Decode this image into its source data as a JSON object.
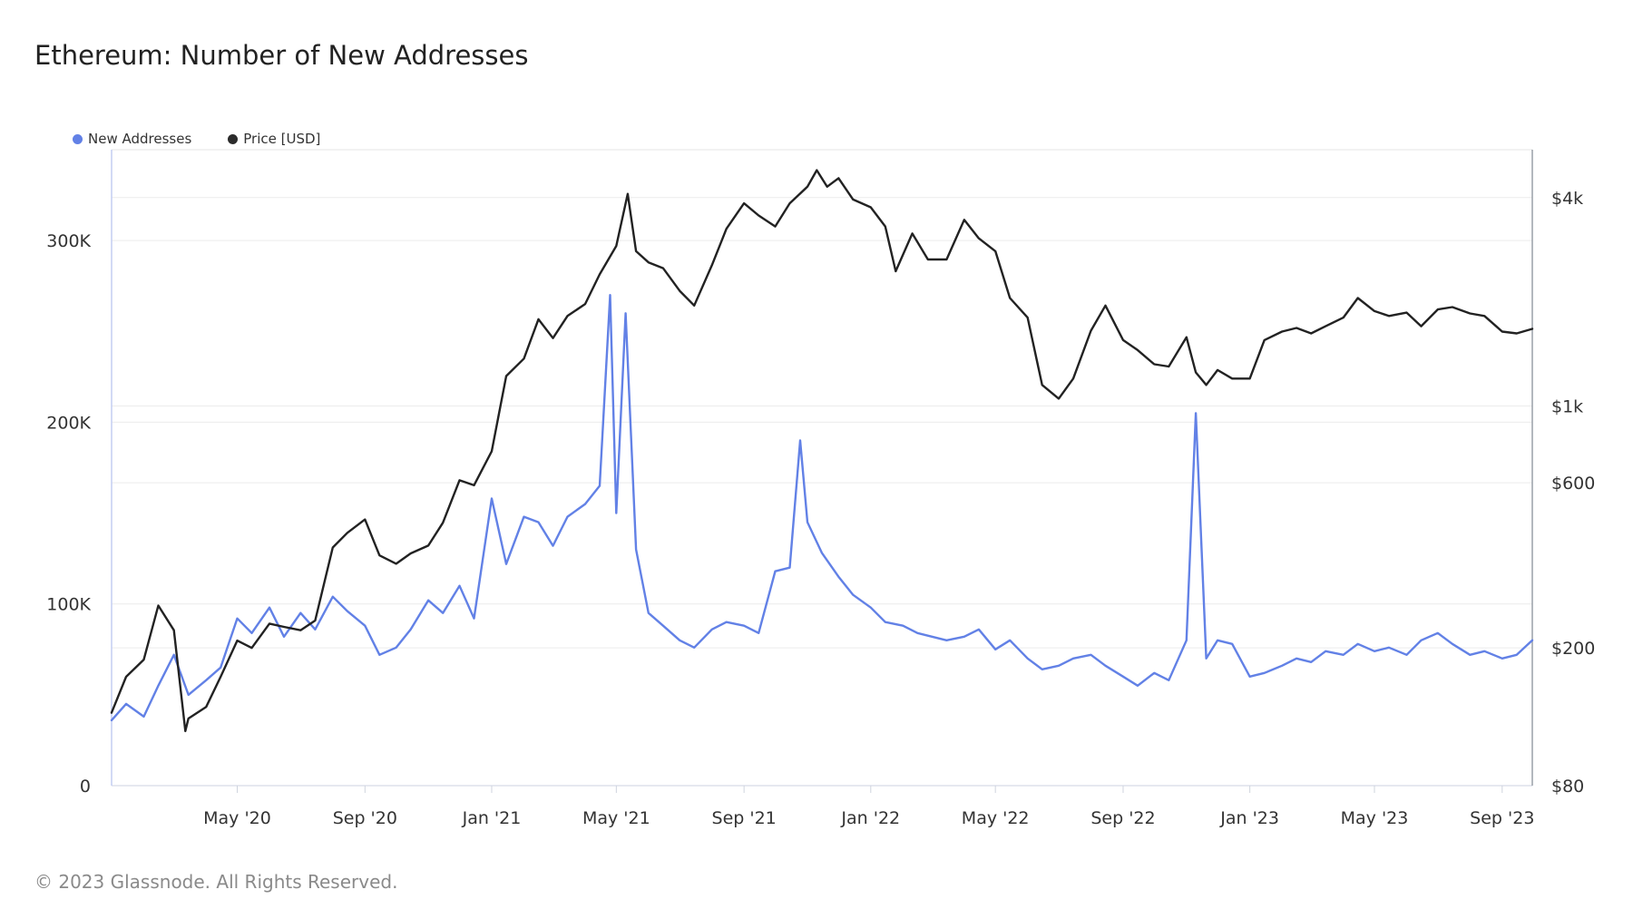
{
  "title": "Ethereum: Number of New Addresses",
  "footer": "© 2023 Glassnode. All Rights Reserved.",
  "colors": {
    "addresses": "#6281e6",
    "price": "#222222",
    "grid": "#ececec"
  },
  "legend": [
    {
      "label": "New Addresses",
      "color": "#6281e6"
    },
    {
      "label": "Price [USD]",
      "color": "#2b2b2b"
    }
  ],
  "chart_data": {
    "type": "line",
    "title": "Ethereum: Number of New Addresses",
    "x_range": [
      "2020-01-01",
      "2023-09-30"
    ],
    "x_ticks": [
      {
        "date": "2020-05-01",
        "label": "May '20"
      },
      {
        "date": "2020-09-01",
        "label": "Sep '20"
      },
      {
        "date": "2021-01-01",
        "label": "Jan '21"
      },
      {
        "date": "2021-05-01",
        "label": "May '21"
      },
      {
        "date": "2021-09-01",
        "label": "Sep '21"
      },
      {
        "date": "2022-01-01",
        "label": "Jan '22"
      },
      {
        "date": "2022-05-01",
        "label": "May '22"
      },
      {
        "date": "2022-09-01",
        "label": "Sep '22"
      },
      {
        "date": "2023-01-01",
        "label": "Jan '23"
      },
      {
        "date": "2023-05-01",
        "label": "May '23"
      },
      {
        "date": "2023-09-01",
        "label": "Sep '23"
      }
    ],
    "y_left": {
      "scale": "linear",
      "range": [
        0,
        350000
      ],
      "ticks": [
        {
          "value": 0,
          "label": "0"
        },
        {
          "value": 100000,
          "label": "100K"
        },
        {
          "value": 200000,
          "label": "200K"
        },
        {
          "value": 300000,
          "label": "300K"
        }
      ]
    },
    "y_right": {
      "scale": "log",
      "range": [
        80,
        5500
      ],
      "ticks": [
        {
          "value": 80,
          "label": "$80"
        },
        {
          "value": 200,
          "label": "$200"
        },
        {
          "value": 600,
          "label": "$600"
        },
        {
          "value": 1000,
          "label": "$1k"
        },
        {
          "value": 4000,
          "label": "$4k"
        }
      ]
    },
    "series": [
      {
        "name": "New Addresses",
        "axis": "left",
        "points": [
          [
            "2020-01-01",
            36000
          ],
          [
            "2020-01-15",
            45000
          ],
          [
            "2020-02-01",
            38000
          ],
          [
            "2020-02-15",
            55000
          ],
          [
            "2020-03-01",
            72000
          ],
          [
            "2020-03-15",
            50000
          ],
          [
            "2020-04-01",
            58000
          ],
          [
            "2020-04-15",
            65000
          ],
          [
            "2020-05-01",
            92000
          ],
          [
            "2020-05-15",
            84000
          ],
          [
            "2020-06-01",
            98000
          ],
          [
            "2020-06-15",
            82000
          ],
          [
            "2020-07-01",
            95000
          ],
          [
            "2020-07-15",
            86000
          ],
          [
            "2020-08-01",
            104000
          ],
          [
            "2020-08-15",
            96000
          ],
          [
            "2020-09-01",
            88000
          ],
          [
            "2020-09-15",
            72000
          ],
          [
            "2020-10-01",
            76000
          ],
          [
            "2020-10-15",
            86000
          ],
          [
            "2020-11-01",
            102000
          ],
          [
            "2020-11-15",
            95000
          ],
          [
            "2020-12-01",
            110000
          ],
          [
            "2020-12-15",
            92000
          ],
          [
            "2021-01-01",
            158000
          ],
          [
            "2021-01-15",
            122000
          ],
          [
            "2021-02-01",
            148000
          ],
          [
            "2021-02-15",
            145000
          ],
          [
            "2021-03-01",
            132000
          ],
          [
            "2021-03-15",
            148000
          ],
          [
            "2021-04-01",
            155000
          ],
          [
            "2021-04-15",
            165000
          ],
          [
            "2021-04-25",
            270000
          ],
          [
            "2021-05-01",
            150000
          ],
          [
            "2021-05-10",
            260000
          ],
          [
            "2021-05-20",
            130000
          ],
          [
            "2021-06-01",
            95000
          ],
          [
            "2021-06-15",
            88000
          ],
          [
            "2021-07-01",
            80000
          ],
          [
            "2021-07-15",
            76000
          ],
          [
            "2021-08-01",
            86000
          ],
          [
            "2021-08-15",
            90000
          ],
          [
            "2021-09-01",
            88000
          ],
          [
            "2021-09-15",
            84000
          ],
          [
            "2021-10-01",
            118000
          ],
          [
            "2021-10-15",
            120000
          ],
          [
            "2021-10-25",
            190000
          ],
          [
            "2021-11-01",
            145000
          ],
          [
            "2021-11-15",
            128000
          ],
          [
            "2021-12-01",
            115000
          ],
          [
            "2021-12-15",
            105000
          ],
          [
            "2022-01-01",
            98000
          ],
          [
            "2022-01-15",
            90000
          ],
          [
            "2022-02-01",
            88000
          ],
          [
            "2022-02-15",
            84000
          ],
          [
            "2022-03-01",
            82000
          ],
          [
            "2022-03-15",
            80000
          ],
          [
            "2022-04-01",
            82000
          ],
          [
            "2022-04-15",
            86000
          ],
          [
            "2022-05-01",
            75000
          ],
          [
            "2022-05-15",
            80000
          ],
          [
            "2022-06-01",
            70000
          ],
          [
            "2022-06-15",
            64000
          ],
          [
            "2022-07-01",
            66000
          ],
          [
            "2022-07-15",
            70000
          ],
          [
            "2022-08-01",
            72000
          ],
          [
            "2022-08-15",
            66000
          ],
          [
            "2022-09-01",
            60000
          ],
          [
            "2022-09-15",
            55000
          ],
          [
            "2022-10-01",
            62000
          ],
          [
            "2022-10-15",
            58000
          ],
          [
            "2022-11-01",
            80000
          ],
          [
            "2022-11-10",
            205000
          ],
          [
            "2022-11-20",
            70000
          ],
          [
            "2022-12-01",
            80000
          ],
          [
            "2022-12-15",
            78000
          ],
          [
            "2023-01-01",
            60000
          ],
          [
            "2023-01-15",
            62000
          ],
          [
            "2023-02-01",
            66000
          ],
          [
            "2023-02-15",
            70000
          ],
          [
            "2023-03-01",
            68000
          ],
          [
            "2023-03-15",
            74000
          ],
          [
            "2023-04-01",
            72000
          ],
          [
            "2023-04-15",
            78000
          ],
          [
            "2023-05-01",
            74000
          ],
          [
            "2023-05-15",
            76000
          ],
          [
            "2023-06-01",
            72000
          ],
          [
            "2023-06-15",
            80000
          ],
          [
            "2023-07-01",
            84000
          ],
          [
            "2023-07-15",
            78000
          ],
          [
            "2023-08-01",
            72000
          ],
          [
            "2023-08-15",
            74000
          ],
          [
            "2023-09-01",
            70000
          ],
          [
            "2023-09-15",
            72000
          ],
          [
            "2023-09-30",
            80000
          ]
        ]
      },
      {
        "name": "Price [USD]",
        "axis": "right",
        "points": [
          [
            "2020-01-01",
            130
          ],
          [
            "2020-01-15",
            165
          ],
          [
            "2020-02-01",
            185
          ],
          [
            "2020-02-15",
            265
          ],
          [
            "2020-03-01",
            225
          ],
          [
            "2020-03-12",
            115
          ],
          [
            "2020-03-15",
            125
          ],
          [
            "2020-04-01",
            135
          ],
          [
            "2020-04-15",
            165
          ],
          [
            "2020-05-01",
            210
          ],
          [
            "2020-05-15",
            200
          ],
          [
            "2020-06-01",
            235
          ],
          [
            "2020-06-15",
            230
          ],
          [
            "2020-07-01",
            225
          ],
          [
            "2020-07-15",
            240
          ],
          [
            "2020-08-01",
            390
          ],
          [
            "2020-08-15",
            430
          ],
          [
            "2020-09-01",
            470
          ],
          [
            "2020-09-15",
            370
          ],
          [
            "2020-10-01",
            350
          ],
          [
            "2020-10-15",
            375
          ],
          [
            "2020-11-01",
            395
          ],
          [
            "2020-11-15",
            460
          ],
          [
            "2020-12-01",
            610
          ],
          [
            "2020-12-15",
            590
          ],
          [
            "2021-01-01",
            740
          ],
          [
            "2021-01-15",
            1220
          ],
          [
            "2021-02-01",
            1370
          ],
          [
            "2021-02-15",
            1780
          ],
          [
            "2021-03-01",
            1570
          ],
          [
            "2021-03-15",
            1820
          ],
          [
            "2021-04-01",
            1970
          ],
          [
            "2021-04-15",
            2400
          ],
          [
            "2021-05-01",
            2900
          ],
          [
            "2021-05-12",
            4100
          ],
          [
            "2021-05-20",
            2800
          ],
          [
            "2021-06-01",
            2600
          ],
          [
            "2021-06-15",
            2500
          ],
          [
            "2021-07-01",
            2150
          ],
          [
            "2021-07-15",
            1950
          ],
          [
            "2021-08-01",
            2550
          ],
          [
            "2021-08-15",
            3250
          ],
          [
            "2021-09-01",
            3850
          ],
          [
            "2021-09-15",
            3550
          ],
          [
            "2021-10-01",
            3300
          ],
          [
            "2021-10-15",
            3850
          ],
          [
            "2021-11-01",
            4300
          ],
          [
            "2021-11-10",
            4800
          ],
          [
            "2021-11-20",
            4300
          ],
          [
            "2021-12-01",
            4550
          ],
          [
            "2021-12-15",
            3950
          ],
          [
            "2022-01-01",
            3750
          ],
          [
            "2022-01-15",
            3300
          ],
          [
            "2022-01-25",
            2450
          ],
          [
            "2022-02-10",
            3150
          ],
          [
            "2022-02-25",
            2650
          ],
          [
            "2022-03-15",
            2650
          ],
          [
            "2022-04-01",
            3450
          ],
          [
            "2022-04-15",
            3050
          ],
          [
            "2022-05-01",
            2800
          ],
          [
            "2022-05-15",
            2050
          ],
          [
            "2022-06-01",
            1800
          ],
          [
            "2022-06-15",
            1150
          ],
          [
            "2022-07-01",
            1050
          ],
          [
            "2022-07-15",
            1200
          ],
          [
            "2022-08-01",
            1650
          ],
          [
            "2022-08-15",
            1950
          ],
          [
            "2022-09-01",
            1550
          ],
          [
            "2022-09-15",
            1450
          ],
          [
            "2022-10-01",
            1320
          ],
          [
            "2022-10-15",
            1300
          ],
          [
            "2022-11-01",
            1580
          ],
          [
            "2022-11-10",
            1250
          ],
          [
            "2022-11-20",
            1150
          ],
          [
            "2022-12-01",
            1270
          ],
          [
            "2022-12-15",
            1200
          ],
          [
            "2023-01-01",
            1200
          ],
          [
            "2023-01-15",
            1550
          ],
          [
            "2023-02-01",
            1640
          ],
          [
            "2023-02-15",
            1680
          ],
          [
            "2023-03-01",
            1620
          ],
          [
            "2023-03-15",
            1700
          ],
          [
            "2023-04-01",
            1800
          ],
          [
            "2023-04-15",
            2050
          ],
          [
            "2023-05-01",
            1880
          ],
          [
            "2023-05-15",
            1820
          ],
          [
            "2023-06-01",
            1860
          ],
          [
            "2023-06-15",
            1700
          ],
          [
            "2023-07-01",
            1900
          ],
          [
            "2023-07-15",
            1930
          ],
          [
            "2023-08-01",
            1850
          ],
          [
            "2023-08-15",
            1820
          ],
          [
            "2023-09-01",
            1640
          ],
          [
            "2023-09-15",
            1620
          ],
          [
            "2023-09-30",
            1670
          ]
        ]
      }
    ]
  }
}
